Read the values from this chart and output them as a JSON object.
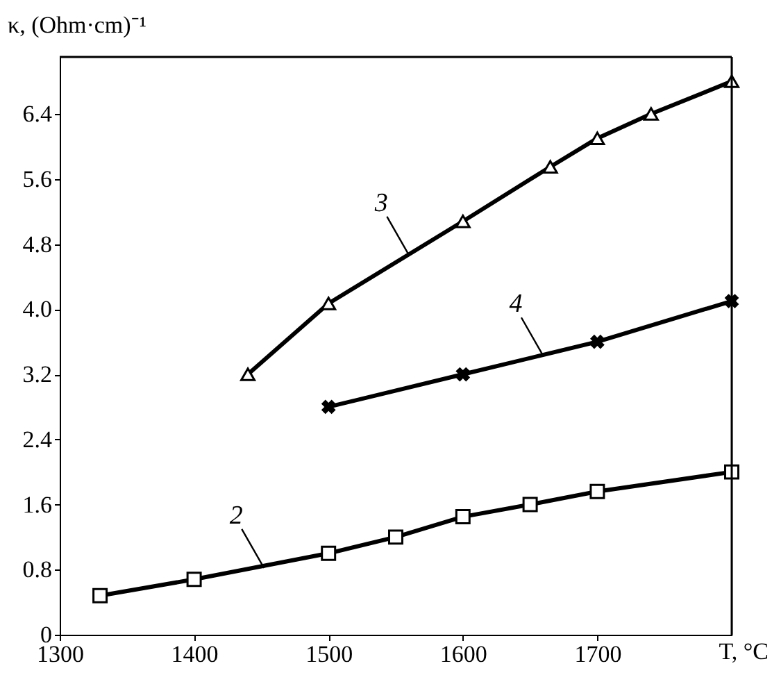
{
  "chart_data": {
    "type": "line",
    "xlabel": "T, °C",
    "ylabel": "κ, (Ohm·cm)⁻¹",
    "xlim": [
      1300,
      1800
    ],
    "xticks": [
      1300,
      1400,
      1500,
      1600,
      1700
    ],
    "ylim": [
      0,
      7.1
    ],
    "yticks": [
      0,
      0.8,
      1.6,
      2.4,
      3.2,
      {
        "value": 4,
        "label": "4.0"
      },
      4.8,
      5.6,
      6.4
    ],
    "grid": false,
    "line_style": "solid",
    "series": [
      {
        "color": "#000000",
        "marker": "square",
        "x": [
          1330,
          1400,
          1500,
          1550,
          1600,
          1650,
          1700,
          1800
        ],
        "values": [
          0.48,
          0.68,
          1.0,
          1.2,
          1.45,
          1.6,
          1.76,
          2.0
        ]
      },
      {
        "color": "#000000",
        "marker": "triangle",
        "x": [
          1440,
          1500,
          1600,
          1665,
          1700,
          1740,
          1800
        ],
        "values": [
          3.2,
          4.07,
          5.08,
          5.75,
          6.1,
          6.4,
          6.8
        ]
      },
      {
        "color": "#000000",
        "marker": "cross",
        "x": [
          1500,
          1600,
          1700,
          1800
        ],
        "values": [
          2.8,
          3.2,
          3.6,
          4.1
        ]
      }
    ],
    "annotations": [
      {
        "text": "2",
        "x": 1452,
        "y": 0.82
      },
      {
        "text": "3",
        "x": 1560,
        "y": 4.66
      },
      {
        "text": "4",
        "x": 1660,
        "y": 3.42
      }
    ]
  }
}
